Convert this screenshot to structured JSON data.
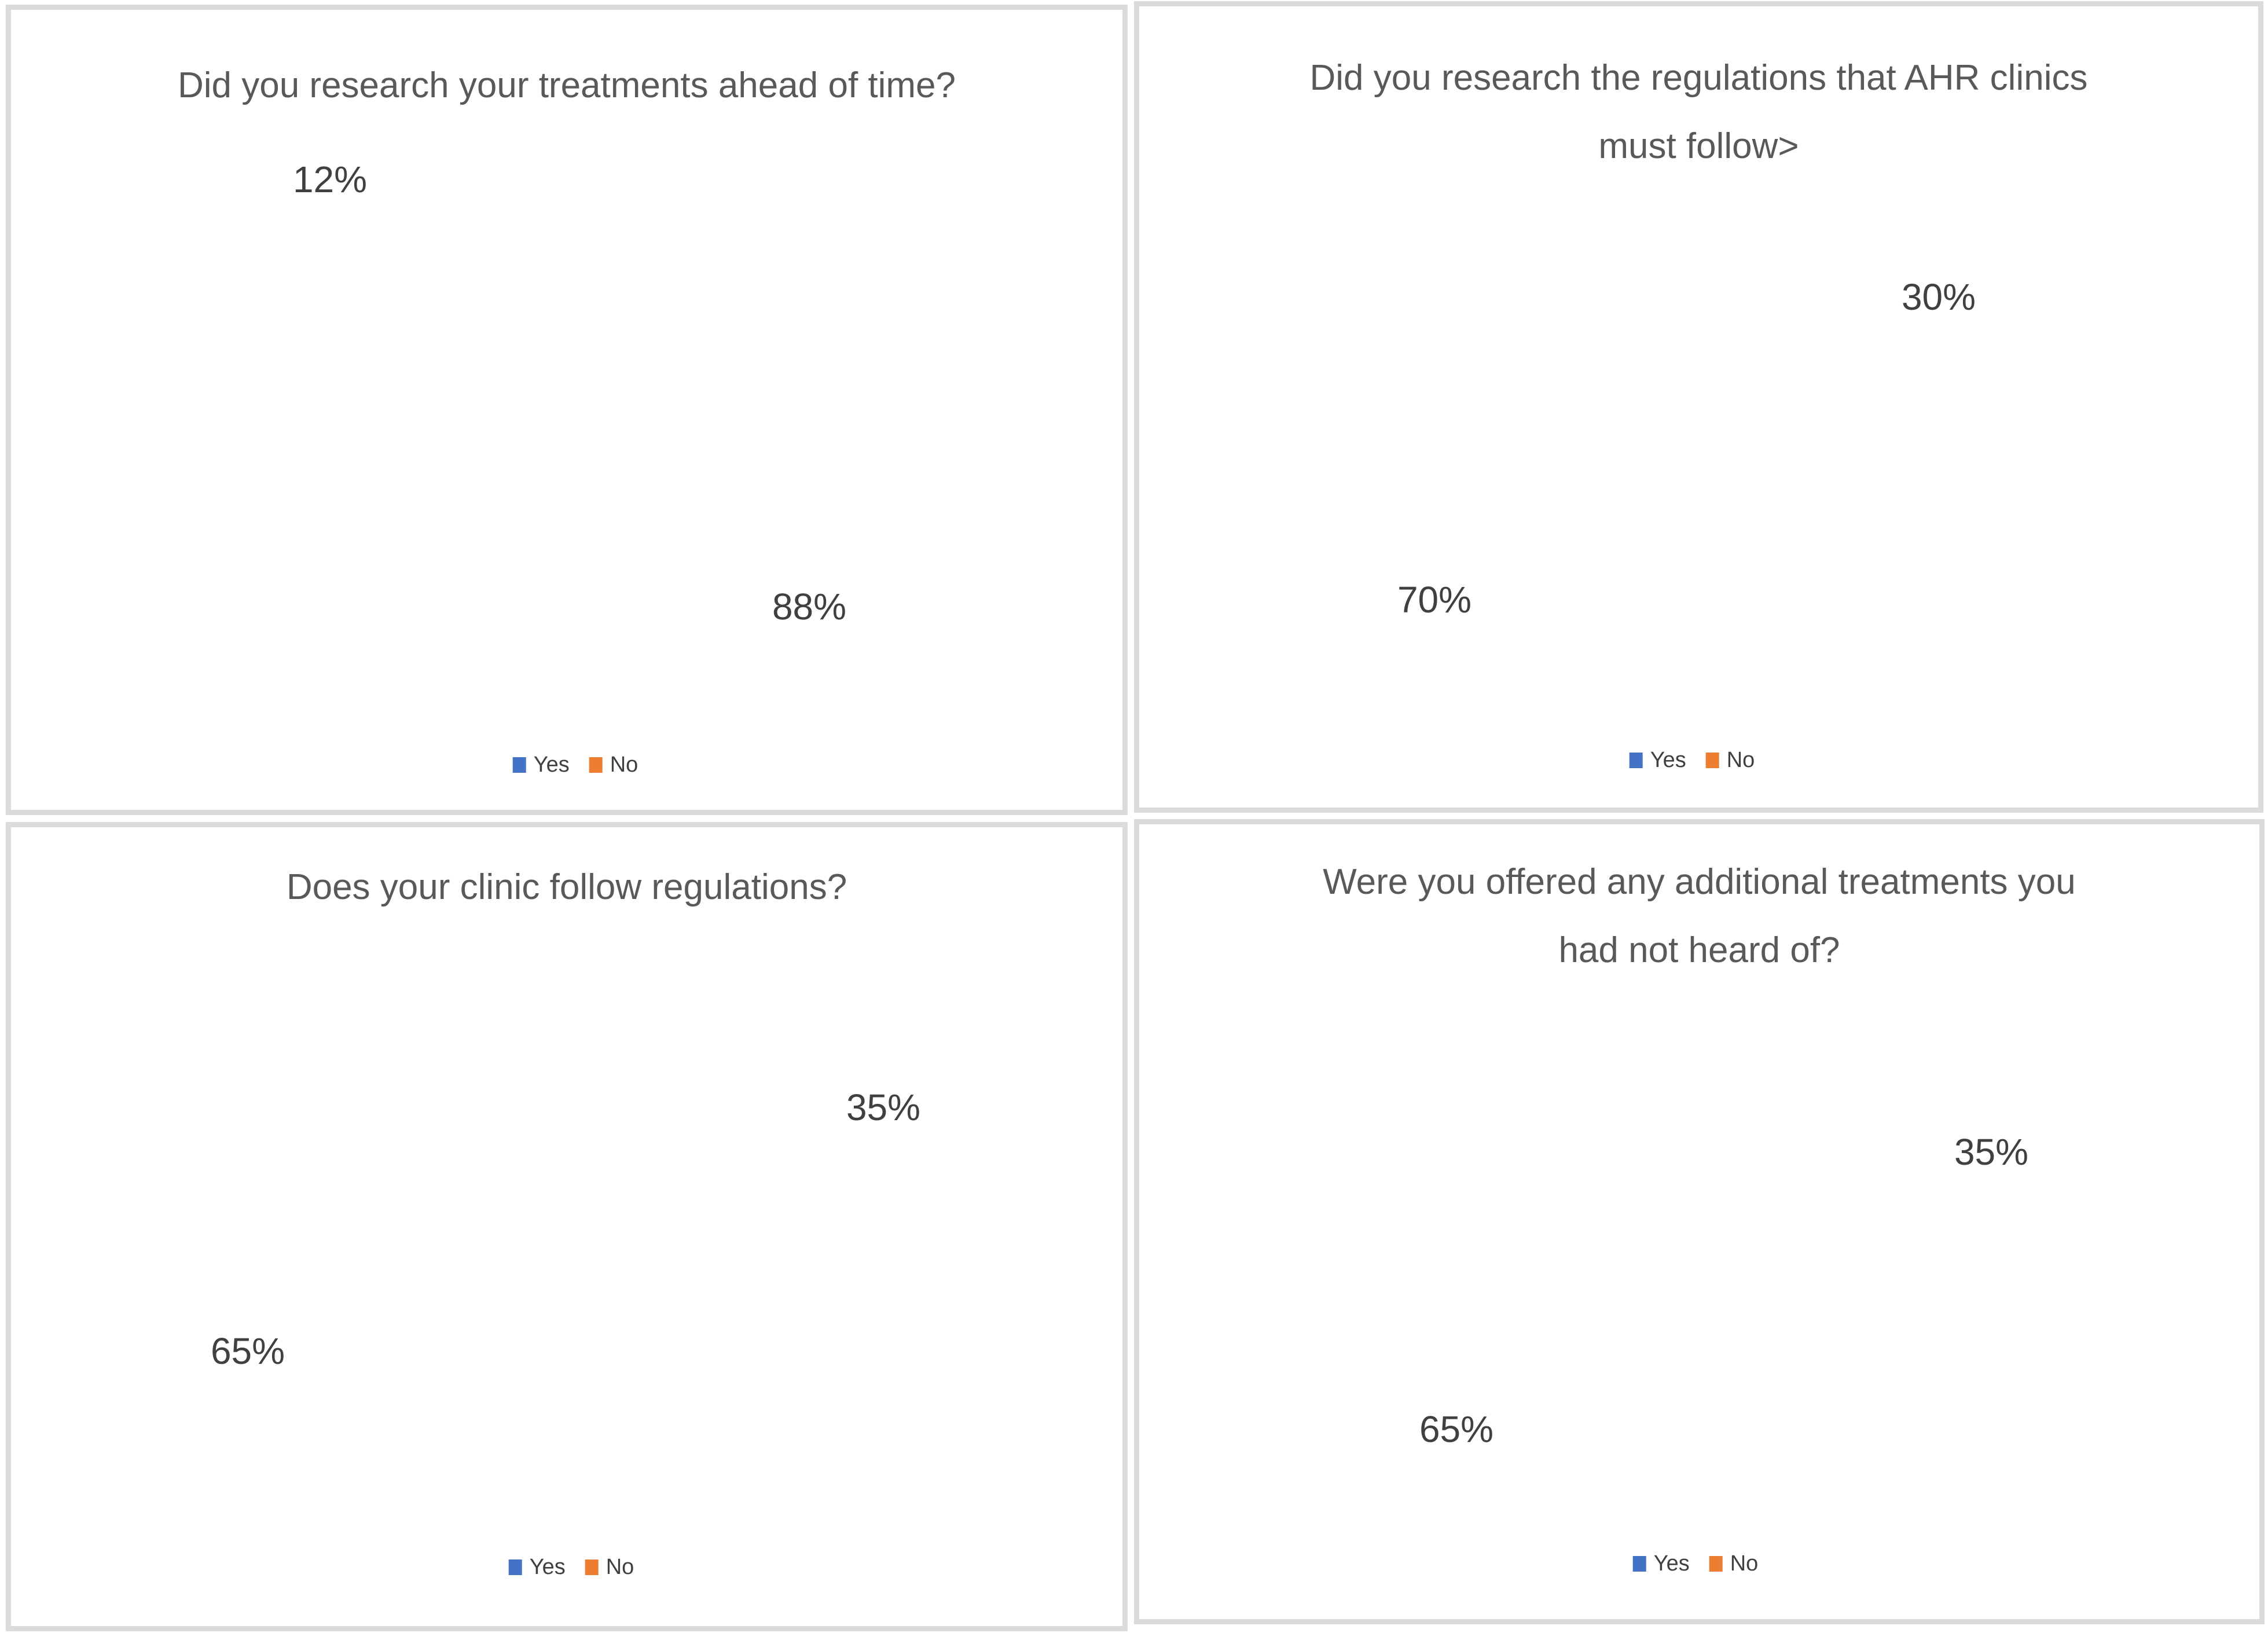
{
  "page": {
    "background": "#FFFFFF"
  },
  "colors": {
    "yes": "#4472C4",
    "no": "#ED7D31",
    "leader_line": "#A6A6A6",
    "title_text": "#595959",
    "label_text": "#404040",
    "legend_text": "#404040",
    "panel_border": "#DBDBDB",
    "slice_outline": "#FFFFFF"
  },
  "chart_data": [
    {
      "id": "research-treatments",
      "type": "pie",
      "title": "Did you research your treatments ahead of time?",
      "title_lines": [
        "Did you research your treatments ahead of time?"
      ],
      "categories": [
        "Yes",
        "No"
      ],
      "values": [
        88,
        12
      ],
      "data_labels": [
        "88%",
        "12%"
      ],
      "series_colors": [
        "#4472C4",
        "#ED7D31"
      ],
      "legend_position": "bottom"
    },
    {
      "id": "research-regulations",
      "type": "pie",
      "title": "Did you research the regulations that AHR clinics must follow>",
      "title_lines": [
        "Did you research the regulations that AHR clinics",
        "must follow>"
      ],
      "categories": [
        "Yes",
        "No"
      ],
      "values": [
        30,
        70
      ],
      "data_labels": [
        "30%",
        "70%"
      ],
      "series_colors": [
        "#4472C4",
        "#ED7D31"
      ],
      "legend_position": "bottom"
    },
    {
      "id": "clinic-follows-regulations",
      "type": "pie",
      "title": "Does your clinic follow regulations?",
      "title_lines": [
        "Does your clinic follow regulations?"
      ],
      "categories": [
        "Yes",
        "No"
      ],
      "values": [
        35,
        65
      ],
      "data_labels": [
        "35%",
        "65%"
      ],
      "series_colors": [
        "#4472C4",
        "#ED7D31"
      ],
      "legend_position": "bottom"
    },
    {
      "id": "additional-treatments",
      "type": "pie",
      "title": "Were you offered any additional treatments you had not heard of?",
      "title_lines": [
        "Were you offered any additional treatments you",
        "had not heard of?"
      ],
      "categories": [
        "Yes",
        "No"
      ],
      "values": [
        35,
        65
      ],
      "data_labels": [
        "35%",
        "65%"
      ],
      "series_colors": [
        "#4472C4",
        "#ED7D31"
      ],
      "legend_position": "bottom"
    }
  ]
}
